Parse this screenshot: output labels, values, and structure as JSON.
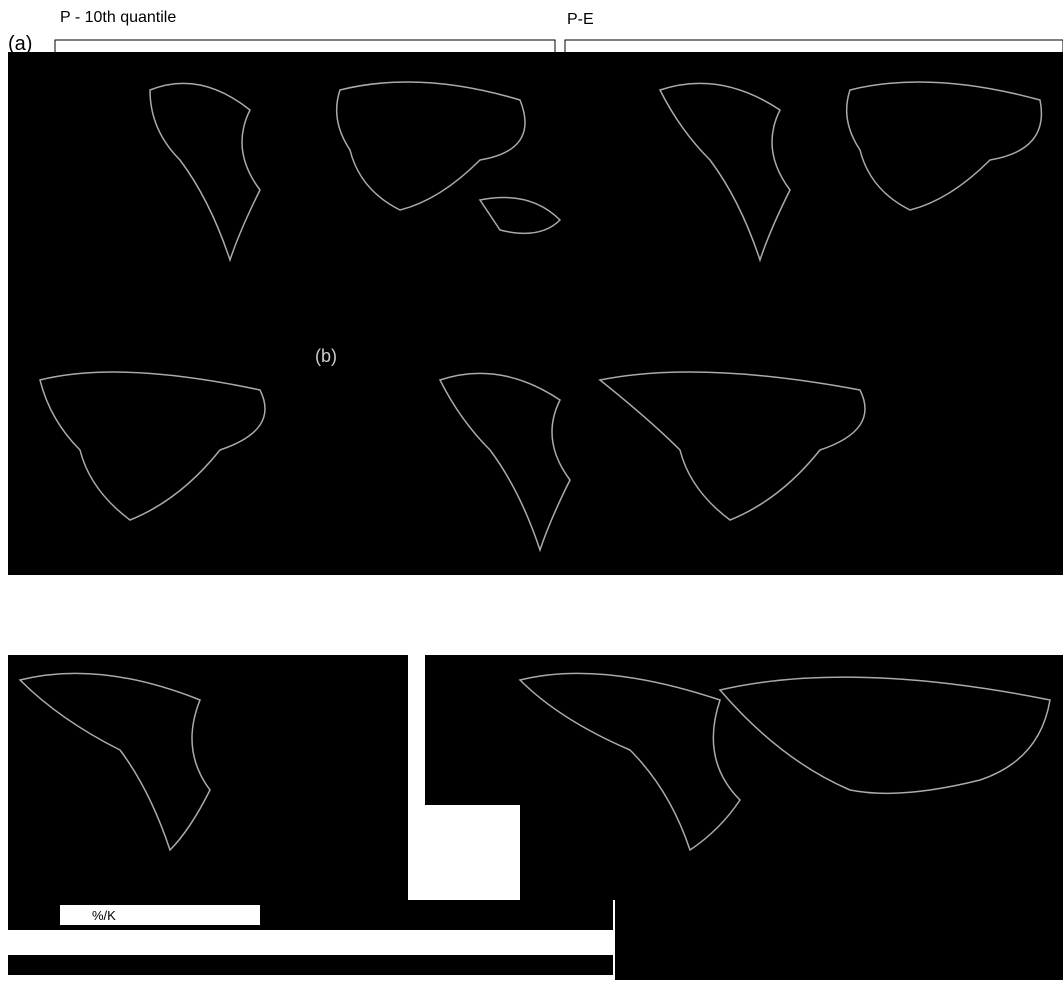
{
  "panels": [
    {
      "label": "(a)",
      "title": "P - 10th quantile"
    },
    {
      "title": "P-E"
    },
    {
      "label": "(b)"
    }
  ],
  "colorbar": {
    "unit": "%/K"
  }
}
